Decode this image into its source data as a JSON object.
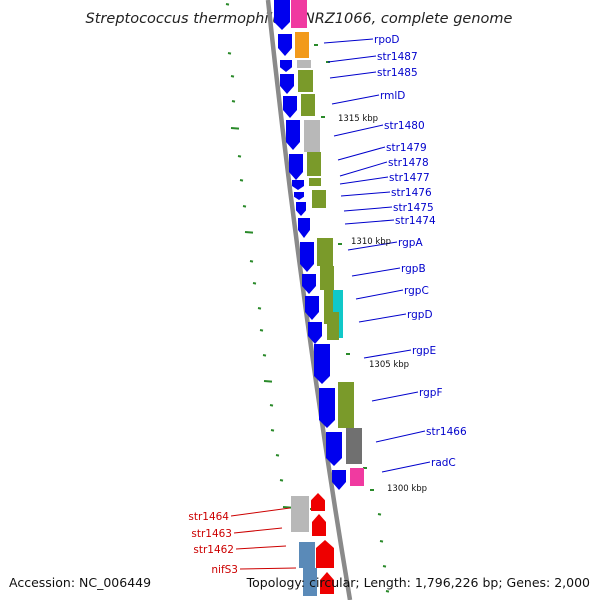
{
  "title": "Streptococcus thermophilus CNRZ1066, complete genome",
  "accession": "Accession: NC_006449",
  "topology": "Topology: circular; Length: 1,796,226 bp; Genes: 2,000",
  "colors": {
    "forward_gene": "#0000ee",
    "reverse_gene": "#ee0000",
    "label_blue": "#0000cc",
    "label_red": "#cc0000",
    "tick": "#2a8a2a",
    "backbone": "#8a8a8a",
    "cog_green": "#7a9a2a",
    "cog_grey": "#b8b8b8",
    "cog_darkgrey": "#707070",
    "cog_orange": "#f29a1a",
    "cog_pink": "#f03aa0",
    "cog_cyan": "#10c8c8",
    "cog_steel": "#5a8ab8"
  },
  "position_markers": [
    {
      "label": "1315 kbp"
    },
    {
      "label": "1310 kbp"
    },
    {
      "label": "1305 kbp"
    },
    {
      "label": "1300 kbp"
    }
  ],
  "forward_labels": [
    "rpoD",
    "str1487",
    "str1485",
    "rmlD",
    "str1480",
    "str1479",
    "str1478",
    "str1477",
    "str1476",
    "str1475",
    "str1474",
    "rgpA",
    "rgpB",
    "rgpC",
    "rgpD",
    "rgpE",
    "rgpF",
    "str1466",
    "radC"
  ],
  "reverse_labels": [
    "str1464",
    "str1463",
    "str1462",
    "nifS3"
  ]
}
